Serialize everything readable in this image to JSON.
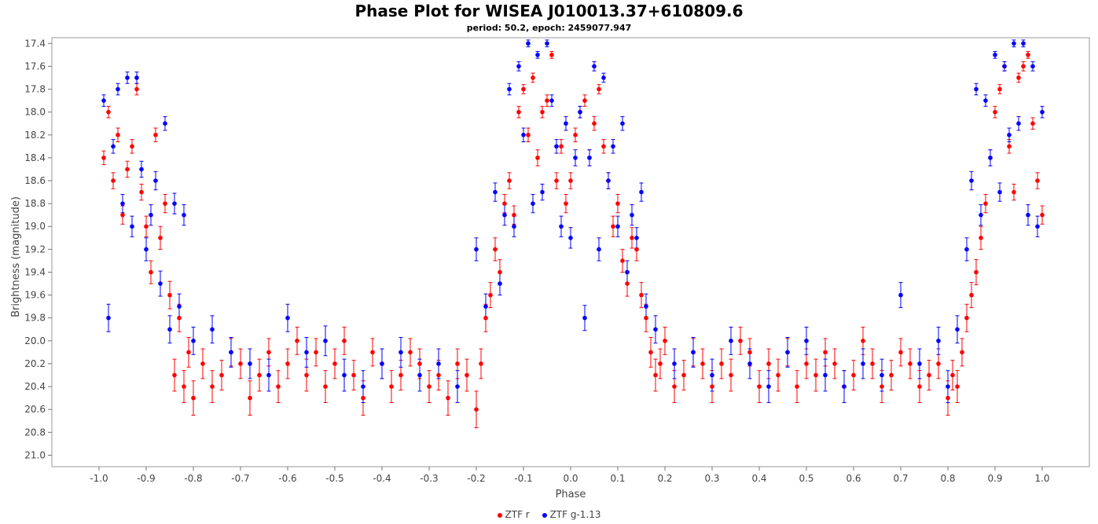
{
  "chart_data": {
    "type": "scatter",
    "title": "Phase Plot for WISEA J010013.37+610809.6",
    "subtitle": "period: 50.2, epoch: 2459077.947",
    "xlabel": "Phase",
    "ylabel": "Brightness (magnitude)",
    "xlim": [
      -1.1,
      1.1
    ],
    "ylim": [
      21.1,
      17.35
    ],
    "y_inverted": true,
    "xticks": [
      "-1.0",
      "-0.9",
      "-0.8",
      "-0.7",
      "-0.6",
      "-0.5",
      "-0.4",
      "-0.3",
      "-0.2",
      "-0.1",
      "0.0",
      "0.1",
      "0.2",
      "0.3",
      "0.4",
      "0.5",
      "0.6",
      "0.7",
      "0.8",
      "0.9",
      "1.0"
    ],
    "yticks": [
      "17.4",
      "17.6",
      "17.8",
      "18.0",
      "18.2",
      "18.4",
      "18.6",
      "18.8",
      "19.0",
      "19.2",
      "19.4",
      "19.6",
      "19.8",
      "20.0",
      "20.2",
      "20.4",
      "20.6",
      "20.8",
      "21.0"
    ],
    "grid": false,
    "legend_position": "bottom-center",
    "series": [
      {
        "name": "ZTF r",
        "color": "#ff0000",
        "x": [
          -0.99,
          -0.98,
          -0.97,
          -0.96,
          -0.95,
          -0.94,
          -0.93,
          -0.92,
          -0.91,
          -0.9,
          -0.89,
          -0.88,
          -0.87,
          -0.86,
          -0.85,
          -0.84,
          -0.83,
          -0.82,
          -0.81,
          -0.8,
          -0.78,
          -0.76,
          -0.74,
          -0.72,
          -0.7,
          -0.68,
          -0.66,
          -0.64,
          -0.62,
          -0.6,
          -0.58,
          -0.56,
          -0.54,
          -0.52,
          -0.5,
          -0.48,
          -0.46,
          -0.44,
          -0.42,
          -0.4,
          -0.38,
          -0.36,
          -0.34,
          -0.32,
          -0.3,
          -0.28,
          -0.26,
          -0.24,
          -0.22,
          -0.2,
          -0.19,
          -0.18,
          -0.17,
          -0.16,
          -0.15,
          -0.14,
          -0.13,
          -0.12,
          -0.11,
          -0.1,
          -0.09,
          -0.08,
          -0.07,
          -0.06,
          -0.05,
          -0.04,
          -0.03,
          -0.02,
          -0.01,
          0.0,
          0.01,
          0.02,
          0.03,
          0.04,
          0.05,
          0.06,
          0.07,
          0.08,
          0.09,
          0.1,
          0.11,
          0.12,
          0.13,
          0.14,
          0.15,
          0.16,
          0.17,
          0.18,
          0.19,
          0.2,
          0.22,
          0.24,
          0.26,
          0.28,
          0.3,
          0.32,
          0.34,
          0.36,
          0.38,
          0.4,
          0.42,
          0.44,
          0.46,
          0.48,
          0.5,
          0.52,
          0.54,
          0.56,
          0.58,
          0.6,
          0.62,
          0.64,
          0.66,
          0.68,
          0.7,
          0.72,
          0.74,
          0.76,
          0.78,
          0.8,
          0.81,
          0.82,
          0.83,
          0.84,
          0.85,
          0.86,
          0.87,
          0.88,
          0.89,
          0.9,
          0.91,
          0.92,
          0.93,
          0.94,
          0.95,
          0.96,
          0.97,
          0.98,
          0.99,
          1.0
        ],
        "y": [
          18.4,
          18.0,
          18.6,
          18.2,
          18.9,
          18.5,
          18.3,
          17.8,
          18.7,
          19.0,
          19.4,
          18.2,
          19.1,
          18.8,
          19.6,
          20.3,
          19.8,
          20.4,
          20.1,
          20.5,
          20.2,
          20.4,
          20.3,
          20.1,
          20.2,
          20.5,
          20.3,
          20.1,
          20.4,
          20.2,
          20.0,
          20.3,
          20.1,
          20.4,
          20.2,
          20.0,
          20.3,
          20.5,
          20.1,
          20.2,
          20.4,
          20.3,
          20.1,
          20.2,
          20.4,
          20.3,
          20.5,
          20.2,
          20.3,
          20.6,
          20.2,
          19.8,
          19.6,
          19.2,
          19.4,
          18.8,
          18.6,
          18.9,
          18.0,
          17.8,
          18.2,
          17.7,
          18.4,
          18.0,
          17.9,
          17.5,
          18.6,
          18.3,
          18.8,
          18.6,
          18.2,
          18.0,
          17.9,
          18.4,
          18.1,
          17.8,
          18.3,
          18.6,
          19.0,
          18.8,
          19.3,
          19.5,
          19.1,
          19.2,
          19.6,
          19.8,
          20.1,
          20.3,
          20.2,
          20.0,
          20.4,
          20.3,
          20.1,
          20.2,
          20.4,
          20.2,
          20.3,
          20.0,
          20.1,
          20.4,
          20.2,
          20.3,
          20.1,
          20.4,
          20.2,
          20.3,
          20.1,
          20.2,
          20.4,
          20.3,
          20.0,
          20.2,
          20.4,
          20.3,
          20.1,
          20.2,
          20.4,
          20.3,
          20.2,
          20.5,
          20.3,
          20.4,
          20.1,
          19.8,
          19.6,
          19.4,
          19.1,
          18.8,
          18.4,
          18.0,
          17.8,
          17.6,
          18.3,
          18.7,
          17.7,
          17.6,
          17.5,
          18.1,
          18.6,
          18.9
        ],
        "err": [
          0.06,
          0.05,
          0.07,
          0.06,
          0.08,
          0.07,
          0.06,
          0.05,
          0.07,
          0.09,
          0.1,
          0.06,
          0.1,
          0.08,
          0.12,
          0.14,
          0.12,
          0.14,
          0.13,
          0.15,
          0.13,
          0.14,
          0.13,
          0.12,
          0.13,
          0.15,
          0.14,
          0.12,
          0.14,
          0.13,
          0.12,
          0.14,
          0.12,
          0.14,
          0.13,
          0.12,
          0.13,
          0.15,
          0.12,
          0.13,
          0.14,
          0.13,
          0.12,
          0.13,
          0.14,
          0.13,
          0.15,
          0.13,
          0.14,
          0.16,
          0.13,
          0.12,
          0.11,
          0.1,
          0.11,
          0.08,
          0.07,
          0.08,
          0.05,
          0.04,
          0.06,
          0.04,
          0.07,
          0.05,
          0.05,
          0.03,
          0.07,
          0.06,
          0.08,
          0.07,
          0.06,
          0.05,
          0.05,
          0.07,
          0.06,
          0.04,
          0.06,
          0.07,
          0.09,
          0.08,
          0.1,
          0.11,
          0.09,
          0.1,
          0.11,
          0.12,
          0.13,
          0.14,
          0.13,
          0.12,
          0.14,
          0.13,
          0.12,
          0.13,
          0.14,
          0.13,
          0.14,
          0.12,
          0.12,
          0.14,
          0.13,
          0.14,
          0.12,
          0.14,
          0.13,
          0.14,
          0.12,
          0.13,
          0.14,
          0.13,
          0.12,
          0.13,
          0.14,
          0.13,
          0.12,
          0.13,
          0.14,
          0.13,
          0.13,
          0.15,
          0.13,
          0.14,
          0.12,
          0.12,
          0.11,
          0.11,
          0.1,
          0.08,
          0.07,
          0.05,
          0.04,
          0.04,
          0.06,
          0.07,
          0.04,
          0.04,
          0.03,
          0.05,
          0.07,
          0.08
        ]
      },
      {
        "name": "ZTF g-1.13",
        "color": "#0000ff",
        "x": [
          -0.99,
          -0.98,
          -0.97,
          -0.96,
          -0.95,
          -0.94,
          -0.93,
          -0.92,
          -0.91,
          -0.9,
          -0.89,
          -0.88,
          -0.87,
          -0.86,
          -0.85,
          -0.84,
          -0.83,
          -0.82,
          -0.8,
          -0.76,
          -0.72,
          -0.68,
          -0.64,
          -0.6,
          -0.56,
          -0.52,
          -0.48,
          -0.44,
          -0.4,
          -0.36,
          -0.32,
          -0.28,
          -0.24,
          -0.2,
          -0.18,
          -0.16,
          -0.15,
          -0.14,
          -0.13,
          -0.12,
          -0.11,
          -0.1,
          -0.09,
          -0.08,
          -0.07,
          -0.06,
          -0.05,
          -0.04,
          -0.03,
          -0.02,
          -0.01,
          0.0,
          0.01,
          0.02,
          0.03,
          0.04,
          0.05,
          0.06,
          0.07,
          0.08,
          0.09,
          0.1,
          0.11,
          0.12,
          0.13,
          0.14,
          0.15,
          0.16,
          0.18,
          0.22,
          0.26,
          0.3,
          0.34,
          0.38,
          0.42,
          0.46,
          0.5,
          0.54,
          0.58,
          0.62,
          0.66,
          0.7,
          0.74,
          0.78,
          0.8,
          0.82,
          0.84,
          0.85,
          0.86,
          0.87,
          0.88,
          0.89,
          0.9,
          0.91,
          0.92,
          0.93,
          0.94,
          0.95,
          0.96,
          0.97,
          0.98,
          0.99,
          1.0
        ],
        "y": [
          17.9,
          19.8,
          18.3,
          17.8,
          18.8,
          17.7,
          19.0,
          17.7,
          18.5,
          19.2,
          18.9,
          18.6,
          19.5,
          18.1,
          19.9,
          18.8,
          19.7,
          18.9,
          20.0,
          19.9,
          20.1,
          20.2,
          20.3,
          19.8,
          20.1,
          20.0,
          20.3,
          20.4,
          20.2,
          20.1,
          20.3,
          20.2,
          20.4,
          19.2,
          19.7,
          18.7,
          19.5,
          18.9,
          17.8,
          19.0,
          17.6,
          18.2,
          17.4,
          18.8,
          17.5,
          18.7,
          17.4,
          17.9,
          18.3,
          19.0,
          18.1,
          19.1,
          18.4,
          18.0,
          19.8,
          18.4,
          17.6,
          19.2,
          17.7,
          18.6,
          18.3,
          19.0,
          18.1,
          19.4,
          18.9,
          19.1,
          18.7,
          19.7,
          19.9,
          20.2,
          20.1,
          20.3,
          20.0,
          20.2,
          20.4,
          20.1,
          20.0,
          20.3,
          20.4,
          20.2,
          20.3,
          19.6,
          20.2,
          20.0,
          20.4,
          19.9,
          19.2,
          18.6,
          17.8,
          18.9,
          17.9,
          18.4,
          17.5,
          18.7,
          17.6,
          18.2,
          17.4,
          18.1,
          17.4,
          18.9,
          17.6,
          19.0,
          18.0
        ],
        "err": [
          0.05,
          0.12,
          0.06,
          0.05,
          0.08,
          0.05,
          0.09,
          0.05,
          0.07,
          0.1,
          0.09,
          0.08,
          0.11,
          0.06,
          0.12,
          0.09,
          0.11,
          0.09,
          0.12,
          0.12,
          0.13,
          0.13,
          0.14,
          0.12,
          0.13,
          0.13,
          0.14,
          0.14,
          0.13,
          0.13,
          0.14,
          0.13,
          0.14,
          0.1,
          0.11,
          0.08,
          0.1,
          0.09,
          0.05,
          0.09,
          0.04,
          0.06,
          0.03,
          0.08,
          0.03,
          0.07,
          0.03,
          0.05,
          0.06,
          0.09,
          0.06,
          0.09,
          0.07,
          0.05,
          0.11,
          0.07,
          0.04,
          0.1,
          0.04,
          0.07,
          0.06,
          0.09,
          0.06,
          0.1,
          0.09,
          0.09,
          0.08,
          0.11,
          0.12,
          0.13,
          0.13,
          0.14,
          0.12,
          0.13,
          0.14,
          0.13,
          0.12,
          0.14,
          0.14,
          0.13,
          0.14,
          0.11,
          0.13,
          0.12,
          0.14,
          0.12,
          0.1,
          0.08,
          0.05,
          0.09,
          0.05,
          0.07,
          0.03,
          0.08,
          0.04,
          0.06,
          0.03,
          0.06,
          0.03,
          0.09,
          0.04,
          0.09,
          0.05
        ]
      }
    ]
  }
}
